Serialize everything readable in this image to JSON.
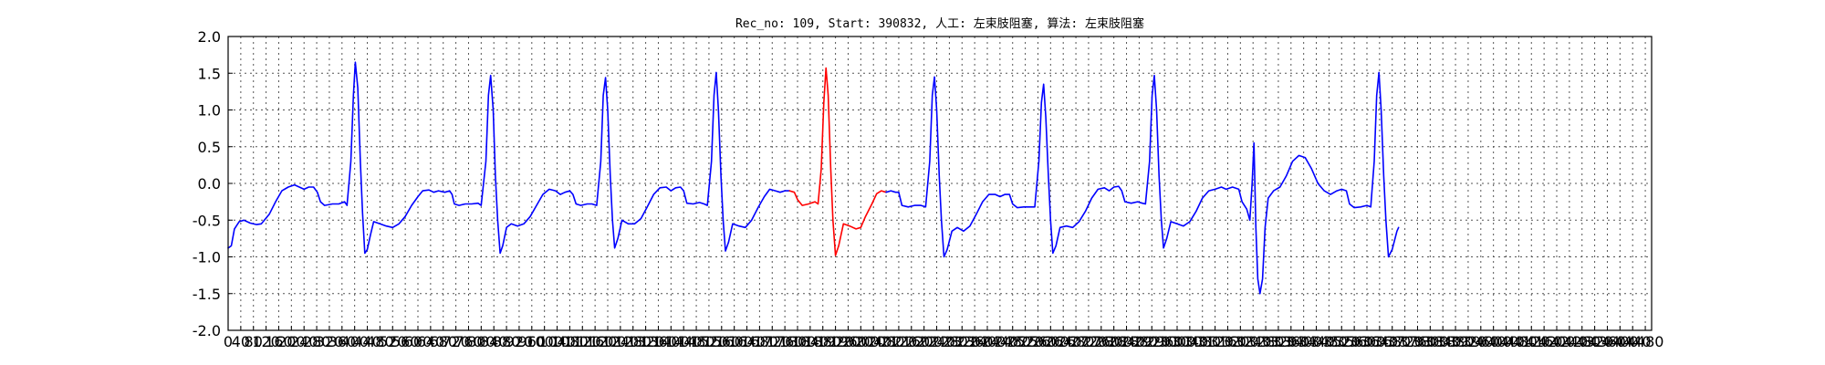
{
  "chart_data": {
    "type": "line",
    "title": "Rec_no: 109, Start: 390832, 人工: 左束肢阻塞, 算法: 左束肢阻塞",
    "xlabel": "",
    "ylabel": "",
    "xlim": [
      0,
      4500
    ],
    "ylim": [
      -2.0,
      2.0
    ],
    "grid": true,
    "xticks": [
      0,
      40,
      80,
      120,
      160,
      200,
      240,
      280,
      320,
      360,
      400,
      440,
      480,
      520,
      560,
      600,
      640,
      680,
      720,
      760,
      800,
      840,
      880,
      920,
      960,
      1000,
      1040,
      1080,
      1120,
      1160,
      1200,
      1240,
      1280,
      1320,
      1360,
      1400,
      1440,
      1480,
      1520,
      1560,
      1600,
      1640,
      1680,
      1720,
      1760,
      1800,
      1840,
      1880,
      1920,
      1960,
      2000,
      2040,
      2080,
      2120,
      2160,
      2200,
      2240,
      2280,
      2320,
      2360,
      2400,
      2440,
      2480,
      2520,
      2560,
      2600,
      2640,
      2680,
      2720,
      2760,
      2800,
      2840,
      2880,
      2920,
      2960,
      3000,
      3040,
      3080,
      3120,
      3160,
      3200,
      3240,
      3280,
      3320,
      3360,
      3400,
      3440,
      3480,
      3520,
      3560,
      3600,
      3640,
      3680,
      3720,
      3760,
      3800,
      3840,
      3880,
      3920,
      3960,
      4000,
      4040,
      4080,
      4120,
      4160,
      4200,
      4240,
      4280,
      4320,
      4360,
      4400,
      4440,
      4480
    ],
    "xtick_labels": [
      "0",
      "40",
      "80",
      "120",
      "160",
      "200",
      "240",
      "280",
      "320",
      "360",
      "400",
      "440",
      "480",
      "520",
      "560",
      "600",
      "640",
      "680",
      "720",
      "760",
      "800",
      "840",
      "880",
      "920",
      "960",
      "1000",
      "1040",
      "1080",
      "1120",
      "1160",
      "1200",
      "1240",
      "1280",
      "1320",
      "1360",
      "1400",
      "1440",
      "1480",
      "1520",
      "1560",
      "1600",
      "1640",
      "1680",
      "1720",
      "1760",
      "1800",
      "1840",
      "1880",
      "1920",
      "1960",
      "2000",
      "2040",
      "2080",
      "2120",
      "2160",
      "2200",
      "2240",
      "2280",
      "2320",
      "2360",
      "2400",
      "2440",
      "2480",
      "2520",
      "2560",
      "2600",
      "2640",
      "2680",
      "2720",
      "2760",
      "2800",
      "2840",
      "2880",
      "2920",
      "2960",
      "3000",
      "3040",
      "3080",
      "3120",
      "3160",
      "3200",
      "3240",
      "3280",
      "3320",
      "3360",
      "3400",
      "3440",
      "3480",
      "3520",
      "3560",
      "3600",
      "3640",
      "3680",
      "3720",
      "3760",
      "3800",
      "3840",
      "3880",
      "3920",
      "3960",
      "4000",
      "4040",
      "4080",
      "4120",
      "4160",
      "4200",
      "4240",
      "4280",
      "4320",
      "4360",
      "4400",
      "4440",
      "4480"
    ],
    "yticks": [
      2.0,
      1.5,
      1.0,
      0.5,
      0.0,
      -0.5,
      -1.0,
      -1.5,
      -2.0
    ],
    "ytick_labels": [
      "2.0",
      "1.5",
      "1.0",
      "0.5",
      "0.0",
      "-0.5",
      "-1.0",
      "-1.5",
      "-2.0"
    ],
    "series": [
      {
        "color": "#0000ff",
        "points": [
          [
            0,
            -0.88
          ],
          [
            10,
            -0.85
          ],
          [
            20,
            -0.62
          ],
          [
            35,
            -0.52
          ],
          [
            50,
            -0.5
          ],
          [
            70,
            -0.54
          ],
          [
            90,
            -0.56
          ],
          [
            105,
            -0.55
          ],
          [
            130,
            -0.42
          ],
          [
            150,
            -0.25
          ],
          [
            170,
            -0.1
          ],
          [
            190,
            -0.05
          ],
          [
            210,
            -0.02
          ],
          [
            225,
            -0.05
          ],
          [
            240,
            -0.08
          ],
          [
            255,
            -0.05
          ],
          [
            270,
            -0.05
          ],
          [
            282,
            -0.12
          ],
          [
            292,
            -0.25
          ],
          [
            305,
            -0.3
          ],
          [
            330,
            -0.28
          ],
          [
            350,
            -0.28
          ],
          [
            368,
            -0.25
          ],
          [
            376,
            -0.3
          ],
          [
            388,
            0.3
          ],
          [
            396,
            1.2
          ],
          [
            402,
            1.65
          ],
          [
            410,
            1.3
          ],
          [
            418,
            0.3
          ],
          [
            425,
            -0.4
          ],
          [
            432,
            -0.95
          ],
          [
            440,
            -0.9
          ],
          [
            450,
            -0.7
          ],
          [
            460,
            -0.52
          ],
          [
            480,
            -0.55
          ],
          [
            500,
            -0.58
          ],
          [
            520,
            -0.6
          ],
          [
            540,
            -0.55
          ],
          [
            560,
            -0.45
          ],
          [
            580,
            -0.3
          ],
          [
            600,
            -0.18
          ],
          [
            615,
            -0.1
          ],
          [
            635,
            -0.09
          ],
          [
            650,
            -0.12
          ],
          [
            665,
            -0.1
          ],
          [
            685,
            -0.12
          ],
          [
            700,
            -0.1
          ],
          [
            708,
            -0.15
          ],
          [
            715,
            -0.28
          ],
          [
            730,
            -0.3
          ],
          [
            750,
            -0.28
          ],
          [
            770,
            -0.28
          ],
          [
            790,
            -0.27
          ],
          [
            800,
            -0.3
          ],
          [
            815,
            0.3
          ],
          [
            823,
            1.2
          ],
          [
            830,
            1.47
          ],
          [
            838,
            1.0
          ],
          [
            845,
            0.1
          ],
          [
            852,
            -0.5
          ],
          [
            860,
            -0.95
          ],
          [
            868,
            -0.85
          ],
          [
            880,
            -0.6
          ],
          [
            895,
            -0.55
          ],
          [
            915,
            -0.58
          ],
          [
            935,
            -0.55
          ],
          [
            955,
            -0.45
          ],
          [
            975,
            -0.3
          ],
          [
            995,
            -0.15
          ],
          [
            1015,
            -0.08
          ],
          [
            1035,
            -0.1
          ],
          [
            1050,
            -0.15
          ],
          [
            1065,
            -0.12
          ],
          [
            1080,
            -0.1
          ],
          [
            1090,
            -0.15
          ],
          [
            1100,
            -0.28
          ],
          [
            1115,
            -0.3
          ],
          [
            1135,
            -0.28
          ],
          [
            1150,
            -0.28
          ],
          [
            1165,
            -0.3
          ],
          [
            1178,
            0.3
          ],
          [
            1186,
            1.2
          ],
          [
            1193,
            1.44
          ],
          [
            1200,
            1.0
          ],
          [
            1208,
            0.1
          ],
          [
            1215,
            -0.5
          ],
          [
            1222,
            -0.88
          ],
          [
            1232,
            -0.75
          ],
          [
            1245,
            -0.5
          ],
          [
            1265,
            -0.55
          ],
          [
            1285,
            -0.55
          ],
          [
            1305,
            -0.48
          ],
          [
            1325,
            -0.32
          ],
          [
            1345,
            -0.15
          ],
          [
            1365,
            -0.06
          ],
          [
            1385,
            -0.05
          ],
          [
            1400,
            -0.1
          ],
          [
            1415,
            -0.06
          ],
          [
            1430,
            -0.05
          ],
          [
            1440,
            -0.1
          ],
          [
            1450,
            -0.27
          ],
          [
            1470,
            -0.28
          ],
          [
            1490,
            -0.26
          ],
          [
            1505,
            -0.28
          ],
          [
            1515,
            -0.3
          ],
          [
            1528,
            0.3
          ],
          [
            1536,
            1.2
          ],
          [
            1543,
            1.51
          ],
          [
            1550,
            1.0
          ],
          [
            1558,
            0.1
          ],
          [
            1565,
            -0.5
          ],
          [
            1572,
            -0.92
          ],
          [
            1582,
            -0.8
          ],
          [
            1595,
            -0.55
          ],
          [
            1615,
            -0.58
          ],
          [
            1635,
            -0.6
          ],
          [
            1655,
            -0.5
          ],
          [
            1675,
            -0.33
          ],
          [
            1695,
            -0.18
          ],
          [
            1712,
            -0.08
          ],
          [
            1730,
            -0.1
          ],
          [
            1745,
            -0.12
          ],
          [
            1760,
            -0.1
          ],
          [
            1775,
            -0.1
          ]
        ]
      },
      {
        "color": "#ff0000",
        "points": [
          [
            1775,
            -0.1
          ],
          [
            1790,
            -0.12
          ],
          [
            1800,
            -0.22
          ],
          [
            1815,
            -0.3
          ],
          [
            1835,
            -0.28
          ],
          [
            1855,
            -0.25
          ],
          [
            1865,
            -0.28
          ],
          [
            1875,
            0.2
          ],
          [
            1883,
            1.1
          ],
          [
            1890,
            1.57
          ],
          [
            1897,
            1.2
          ],
          [
            1905,
            0.2
          ],
          [
            1912,
            -0.5
          ],
          [
            1920,
            -0.98
          ],
          [
            1930,
            -0.85
          ],
          [
            1945,
            -0.55
          ],
          [
            1965,
            -0.58
          ],
          [
            1985,
            -0.62
          ],
          [
            2000,
            -0.6
          ],
          [
            2015,
            -0.45
          ],
          [
            2035,
            -0.28
          ],
          [
            2050,
            -0.14
          ],
          [
            2065,
            -0.1
          ],
          [
            2080,
            -0.12
          ]
        ]
      },
      {
        "color": "#0000ff",
        "points": [
          [
            2080,
            -0.12
          ],
          [
            2095,
            -0.1
          ],
          [
            2110,
            -0.12
          ],
          [
            2120,
            -0.12
          ],
          [
            2130,
            -0.3
          ],
          [
            2150,
            -0.32
          ],
          [
            2170,
            -0.3
          ],
          [
            2190,
            -0.3
          ],
          [
            2205,
            -0.32
          ],
          [
            2218,
            0.3
          ],
          [
            2226,
            1.2
          ],
          [
            2233,
            1.45
          ],
          [
            2240,
            1.0
          ],
          [
            2248,
            0.1
          ],
          [
            2255,
            -0.5
          ],
          [
            2263,
            -1.0
          ],
          [
            2273,
            -0.9
          ],
          [
            2288,
            -0.65
          ],
          [
            2305,
            -0.6
          ],
          [
            2325,
            -0.65
          ],
          [
            2345,
            -0.58
          ],
          [
            2365,
            -0.42
          ],
          [
            2385,
            -0.25
          ],
          [
            2405,
            -0.15
          ],
          [
            2425,
            -0.15
          ],
          [
            2440,
            -0.18
          ],
          [
            2455,
            -0.15
          ],
          [
            2470,
            -0.15
          ],
          [
            2480,
            -0.28
          ],
          [
            2495,
            -0.33
          ],
          [
            2515,
            -0.32
          ],
          [
            2535,
            -0.32
          ],
          [
            2550,
            -0.32
          ],
          [
            2563,
            0.3
          ],
          [
            2571,
            1.1
          ],
          [
            2578,
            1.35
          ],
          [
            2585,
            0.9
          ],
          [
            2593,
            0.1
          ],
          [
            2600,
            -0.5
          ],
          [
            2607,
            -0.95
          ],
          [
            2617,
            -0.85
          ],
          [
            2630,
            -0.6
          ],
          [
            2650,
            -0.58
          ],
          [
            2670,
            -0.6
          ],
          [
            2690,
            -0.52
          ],
          [
            2710,
            -0.38
          ],
          [
            2730,
            -0.2
          ],
          [
            2750,
            -0.08
          ],
          [
            2770,
            -0.06
          ],
          [
            2785,
            -0.1
          ],
          [
            2800,
            -0.05
          ],
          [
            2815,
            -0.04
          ],
          [
            2825,
            -0.1
          ],
          [
            2835,
            -0.25
          ],
          [
            2855,
            -0.27
          ],
          [
            2875,
            -0.25
          ],
          [
            2890,
            -0.27
          ],
          [
            2900,
            -0.28
          ],
          [
            2913,
            0.3
          ],
          [
            2921,
            1.2
          ],
          [
            2928,
            1.47
          ],
          [
            2935,
            1.0
          ],
          [
            2943,
            0.1
          ],
          [
            2950,
            -0.5
          ],
          [
            2957,
            -0.88
          ],
          [
            2967,
            -0.75
          ],
          [
            2980,
            -0.52
          ],
          [
            3000,
            -0.55
          ],
          [
            3020,
            -0.58
          ],
          [
            3040,
            -0.52
          ],
          [
            3060,
            -0.38
          ],
          [
            3080,
            -0.2
          ],
          [
            3100,
            -0.1
          ],
          [
            3120,
            -0.08
          ],
          [
            3140,
            -0.05
          ],
          [
            3155,
            -0.08
          ],
          [
            3175,
            -0.05
          ],
          [
            3195,
            -0.08
          ],
          [
            3205,
            -0.25
          ],
          [
            3220,
            -0.35
          ],
          [
            3230,
            -0.5
          ],
          [
            3237,
            0.0
          ],
          [
            3243,
            0.55
          ],
          [
            3249,
            -0.6
          ],
          [
            3255,
            -1.3
          ],
          [
            3262,
            -1.5
          ],
          [
            3270,
            -1.3
          ],
          [
            3278,
            -0.6
          ],
          [
            3288,
            -0.2
          ],
          [
            3305,
            -0.1
          ],
          [
            3325,
            -0.05
          ],
          [
            3345,
            0.1
          ],
          [
            3365,
            0.3
          ],
          [
            3385,
            0.38
          ],
          [
            3405,
            0.35
          ],
          [
            3425,
            0.2
          ],
          [
            3445,
            0.0
          ],
          [
            3465,
            -0.1
          ],
          [
            3485,
            -0.15
          ],
          [
            3505,
            -0.1
          ],
          [
            3520,
            -0.08
          ],
          [
            3535,
            -0.1
          ],
          [
            3545,
            -0.28
          ],
          [
            3560,
            -0.33
          ],
          [
            3580,
            -0.32
          ],
          [
            3600,
            -0.3
          ],
          [
            3612,
            -0.32
          ],
          [
            3623,
            0.3
          ],
          [
            3631,
            1.2
          ],
          [
            3638,
            1.51
          ],
          [
            3645,
            1.0
          ],
          [
            3653,
            0.1
          ],
          [
            3660,
            -0.5
          ],
          [
            3668,
            -1.0
          ],
          [
            3680,
            -0.9
          ],
          [
            3695,
            -0.65
          ],
          [
            3700,
            -0.6
          ]
        ]
      }
    ]
  }
}
